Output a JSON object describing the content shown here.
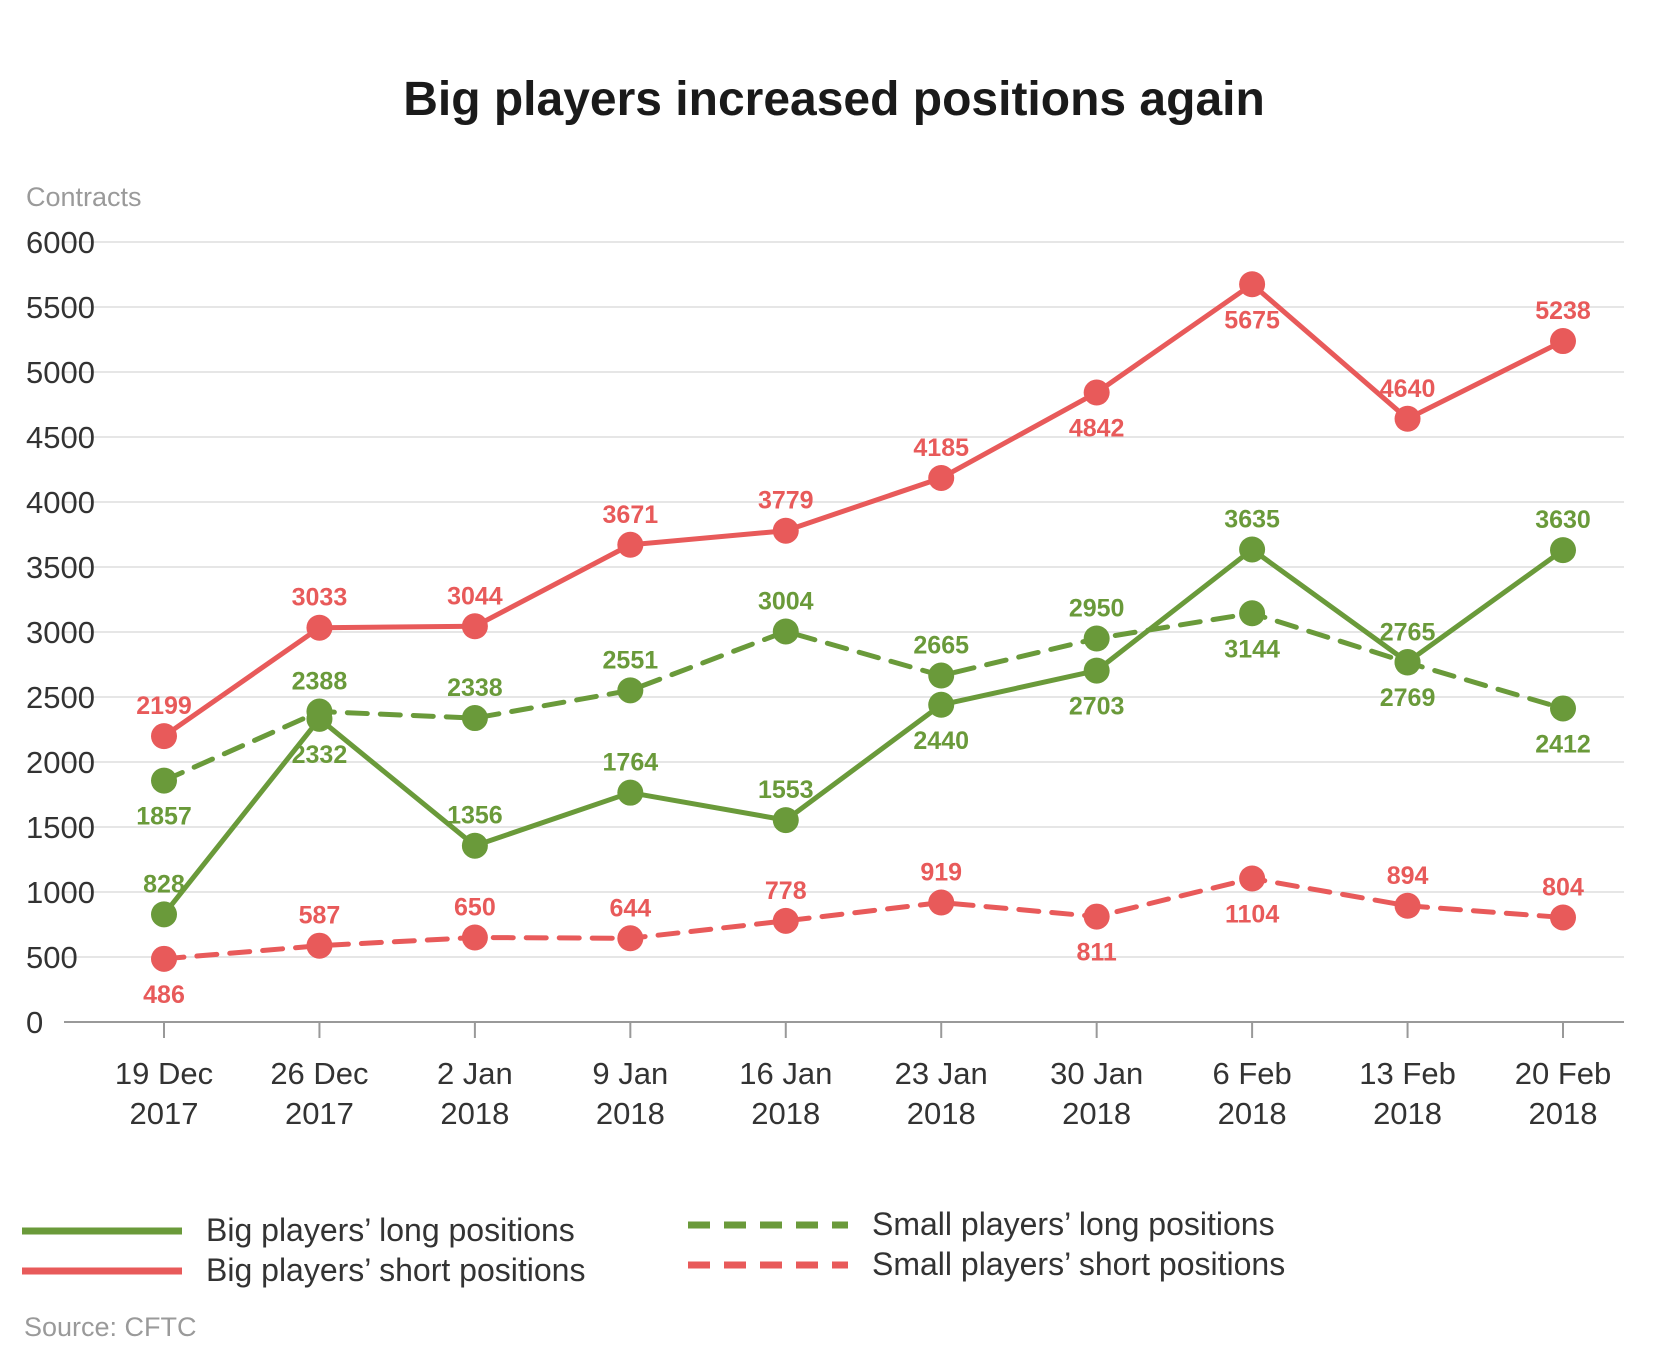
{
  "chart_data": {
    "type": "line",
    "title": "Big players increased positions again",
    "ylabel": "Contracts",
    "ylim": [
      0,
      6000
    ],
    "yticks": [
      0,
      500,
      1000,
      1500,
      2000,
      2500,
      3000,
      3500,
      4000,
      4500,
      5000,
      5500,
      6000
    ],
    "categories": [
      [
        "19 Dec",
        "2017"
      ],
      [
        "26 Dec",
        "2017"
      ],
      [
        "2 Jan",
        "2018"
      ],
      [
        "9 Jan",
        "2018"
      ],
      [
        "16 Jan",
        "2018"
      ],
      [
        "23 Jan",
        "2018"
      ],
      [
        "30 Jan",
        "2018"
      ],
      [
        "6 Feb",
        "2018"
      ],
      [
        "13 Feb",
        "2018"
      ],
      [
        "20 Feb",
        "2018"
      ]
    ],
    "grid": true,
    "legend_position": "bottom",
    "series": [
      {
        "name": "Big players’ long positions",
        "color": "#6a9a3a",
        "dashed": false,
        "values": [
          828,
          2332,
          1356,
          1764,
          1553,
          2440,
          2703,
          3635,
          2769,
          3630
        ],
        "label_below": [
          false,
          true,
          false,
          false,
          false,
          true,
          true,
          false,
          true,
          false
        ]
      },
      {
        "name": "Big players’ short positions",
        "color": "#e85a5a",
        "dashed": false,
        "values": [
          2199,
          3033,
          3044,
          3671,
          3779,
          4185,
          4842,
          5675,
          4640,
          5238
        ],
        "label_below": [
          false,
          false,
          false,
          false,
          false,
          false,
          true,
          true,
          false,
          false
        ]
      },
      {
        "name": "Small players’ long positions",
        "color": "#6a9a3a",
        "dashed": true,
        "values": [
          1857,
          2388,
          2338,
          2551,
          3004,
          2665,
          2950,
          3144,
          2765,
          2412
        ],
        "label_below": [
          true,
          false,
          false,
          false,
          false,
          false,
          false,
          true,
          false,
          true
        ]
      },
      {
        "name": "Small players’ short positions",
        "color": "#e85a5a",
        "dashed": true,
        "values": [
          486,
          587,
          650,
          644,
          778,
          919,
          811,
          1104,
          894,
          804
        ],
        "label_below": [
          true,
          false,
          false,
          false,
          false,
          false,
          true,
          true,
          false,
          false
        ]
      }
    ],
    "source": "Source: CFTC"
  }
}
